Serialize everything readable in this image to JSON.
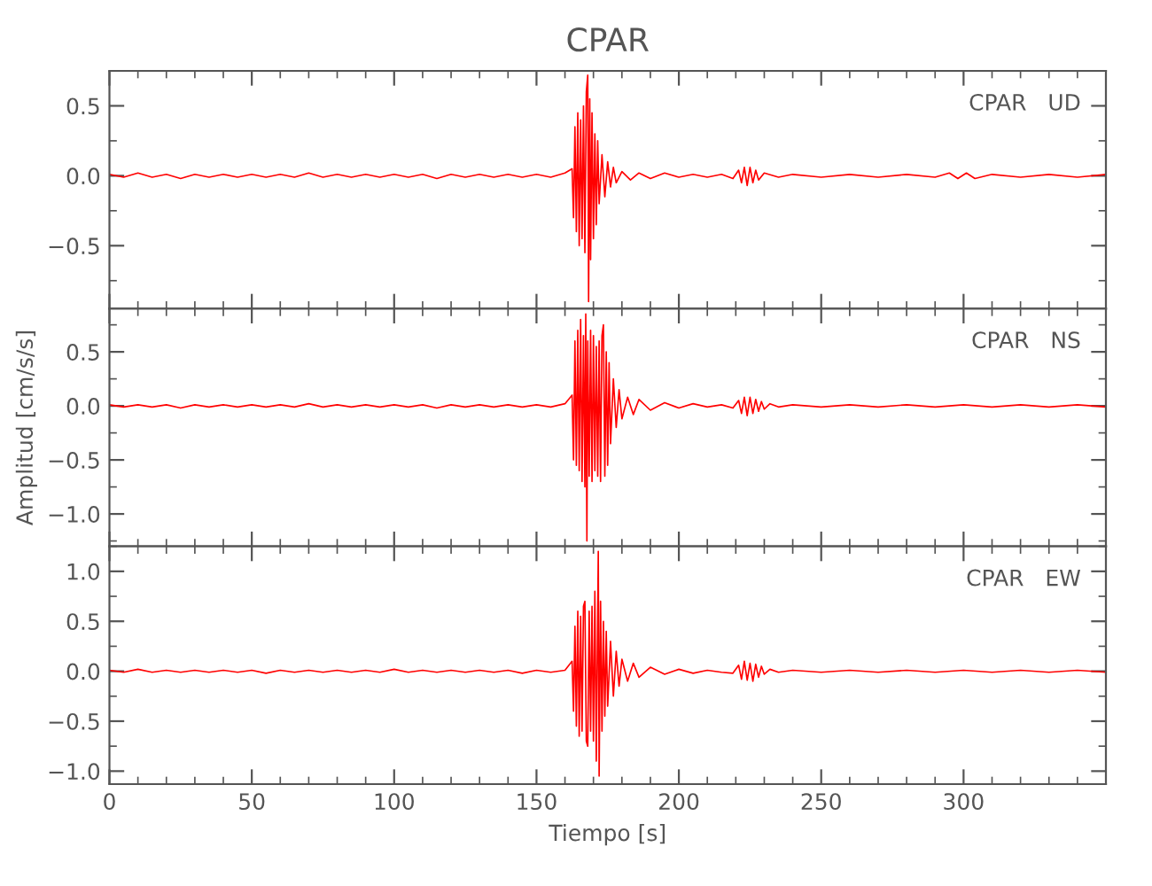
{
  "chart_data": [
    {
      "type": "line",
      "title": "CPAR",
      "annotations": [
        "CPAR   UD"
      ],
      "x": [
        0,
        5,
        10,
        15,
        20,
        25,
        30,
        35,
        40,
        45,
        50,
        55,
        60,
        65,
        70,
        75,
        80,
        85,
        90,
        95,
        100,
        105,
        110,
        115,
        120,
        125,
        130,
        135,
        140,
        145,
        150,
        155,
        160,
        162.5,
        163,
        163.5,
        164,
        164.5,
        165,
        165.5,
        166,
        166.5,
        167,
        167.5,
        168,
        168.3,
        168.7,
        169,
        169.5,
        170,
        170.5,
        171,
        171.5,
        172,
        173,
        174,
        175,
        176,
        177,
        178,
        180,
        183,
        186,
        190,
        195,
        200,
        205,
        210,
        215,
        219,
        221,
        222,
        223,
        224,
        225,
        226,
        227,
        228,
        230,
        235,
        240,
        250,
        260,
        270,
        280,
        290,
        295,
        298,
        301,
        304,
        310,
        320,
        330,
        340,
        350
      ],
      "series": [
        {
          "color": "#ff0000",
          "values": [
            0.01,
            -0.01,
            0.02,
            -0.01,
            0.01,
            -0.02,
            0.01,
            -0.01,
            0.01,
            -0.01,
            0.01,
            -0.01,
            0.01,
            -0.01,
            0.02,
            -0.01,
            0.01,
            -0.01,
            0.01,
            -0.01,
            0.01,
            -0.01,
            0.01,
            -0.02,
            0.01,
            -0.01,
            0.01,
            -0.01,
            0.01,
            -0.01,
            0.01,
            -0.01,
            0.02,
            0.05,
            -0.3,
            0.35,
            -0.4,
            0.45,
            -0.5,
            0.4,
            -0.45,
            0.5,
            -0.55,
            0.6,
            0.72,
            -0.9,
            0.55,
            -0.6,
            0.45,
            -0.45,
            0.3,
            -0.35,
            0.25,
            -0.2,
            0.15,
            -0.15,
            0.1,
            -0.08,
            0.06,
            -0.05,
            0.03,
            -0.03,
            0.02,
            -0.02,
            0.02,
            -0.01,
            0.01,
            -0.01,
            0.01,
            -0.02,
            0.04,
            -0.05,
            0.06,
            -0.07,
            0.06,
            -0.05,
            0.04,
            -0.03,
            0.02,
            -0.01,
            0.01,
            -0.01,
            0.01,
            -0.01,
            0.01,
            -0.01,
            0.02,
            -0.02,
            0.02,
            -0.02,
            0.01,
            -0.01,
            0.01,
            -0.01,
            0.01
          ]
        }
      ],
      "xlim": [
        0,
        350
      ],
      "xticks": [
        0,
        50,
        100,
        150,
        200,
        250,
        300
      ],
      "ylim": [
        -0.95,
        0.75
      ],
      "yticks": [
        {
          "value": -0.5,
          "label": "−0.5"
        },
        {
          "value": 0,
          "label": "0.0"
        },
        {
          "value": 0.5,
          "label": "0.5"
        }
      ],
      "tick_labels": "y"
    },
    {
      "type": "line",
      "ylabel": "Amplitud [cm/s/s]",
      "annotations": [
        "CPAR   NS"
      ],
      "x": [
        0,
        5,
        10,
        15,
        20,
        25,
        30,
        35,
        40,
        45,
        50,
        55,
        60,
        65,
        70,
        75,
        80,
        85,
        90,
        95,
        100,
        105,
        110,
        115,
        120,
        125,
        130,
        135,
        140,
        145,
        150,
        155,
        160,
        162.5,
        163,
        163.5,
        164,
        164.5,
        165,
        165.5,
        166,
        166.5,
        167,
        167.3,
        167.7,
        168,
        168.5,
        169,
        169.5,
        170,
        170.5,
        171,
        171.5,
        172,
        172.5,
        173,
        173.5,
        174,
        174.5,
        175,
        175.5,
        176,
        177,
        178,
        179,
        180,
        182,
        184,
        186,
        190,
        195,
        200,
        205,
        210,
        215,
        219,
        221,
        222,
        223,
        224,
        225,
        226,
        227,
        228,
        229,
        230,
        232,
        235,
        240,
        250,
        260,
        270,
        280,
        290,
        300,
        310,
        320,
        330,
        340,
        350
      ],
      "series": [
        {
          "color": "#ff0000",
          "values": [
            0.01,
            -0.01,
            0.01,
            -0.01,
            0.01,
            -0.02,
            0.01,
            -0.01,
            0.01,
            -0.01,
            0.01,
            -0.01,
            0.01,
            -0.01,
            0.02,
            -0.01,
            0.01,
            -0.01,
            0.01,
            -0.01,
            0.01,
            -0.01,
            0.01,
            -0.02,
            0.01,
            -0.01,
            0.01,
            -0.01,
            0.01,
            -0.01,
            0.01,
            -0.01,
            0.02,
            0.1,
            -0.5,
            0.6,
            -0.55,
            0.7,
            -0.6,
            0.8,
            -0.7,
            0.65,
            -0.75,
            0.85,
            -1.25,
            0.6,
            -0.65,
            0.7,
            -0.7,
            0.65,
            -0.6,
            0.55,
            -0.65,
            0.6,
            -0.7,
            0.65,
            0.75,
            -0.65,
            0.5,
            -0.55,
            0.4,
            -0.35,
            0.25,
            -0.2,
            0.15,
            -0.12,
            0.08,
            -0.08,
            0.06,
            -0.04,
            0.03,
            -0.02,
            0.02,
            -0.01,
            0.01,
            -0.02,
            0.05,
            -0.07,
            0.08,
            -0.09,
            0.08,
            -0.07,
            0.06,
            -0.05,
            0.04,
            -0.03,
            0.02,
            -0.01,
            0.01,
            -0.01,
            0.01,
            -0.01,
            0.01,
            -0.01,
            0.01,
            -0.01,
            0.01,
            -0.01,
            0.01,
            -0.01
          ]
        }
      ],
      "xlim": [
        0,
        350
      ],
      "xticks": [
        0,
        50,
        100,
        150,
        200,
        250,
        300
      ],
      "ylim": [
        -1.3,
        0.9
      ],
      "yticks": [
        {
          "value": -1.0,
          "label": "−1.0"
        },
        {
          "value": -0.5,
          "label": "−0.5"
        },
        {
          "value": 0,
          "label": "0.0"
        },
        {
          "value": 0.5,
          "label": "0.5"
        }
      ],
      "tick_labels": "y"
    },
    {
      "type": "line",
      "xlabel": "Tiempo [s]",
      "annotations": [
        "CPAR   EW"
      ],
      "x": [
        0,
        5,
        10,
        15,
        20,
        25,
        30,
        35,
        40,
        45,
        50,
        55,
        60,
        65,
        70,
        75,
        80,
        85,
        90,
        95,
        100,
        105,
        110,
        115,
        120,
        125,
        130,
        135,
        140,
        145,
        150,
        155,
        160,
        162.5,
        163,
        163.5,
        164,
        164.5,
        165,
        165.5,
        166,
        166.5,
        167,
        167.5,
        168,
        168.5,
        169,
        169.5,
        170,
        170.5,
        171,
        171.7,
        172,
        172.5,
        173,
        173.5,
        174,
        174.5,
        175,
        176,
        177,
        178,
        179,
        180,
        182,
        184,
        186,
        190,
        195,
        200,
        205,
        210,
        215,
        219,
        221,
        222,
        223,
        224,
        225,
        226,
        227,
        228,
        229,
        230,
        232,
        235,
        240,
        250,
        260,
        270,
        280,
        290,
        300,
        310,
        320,
        330,
        340,
        350
      ],
      "series": [
        {
          "color": "#ff0000",
          "values": [
            0.01,
            -0.01,
            0.02,
            -0.01,
            0.01,
            -0.01,
            0.01,
            -0.01,
            0.01,
            -0.01,
            0.01,
            -0.02,
            0.01,
            -0.01,
            0.01,
            -0.01,
            0.01,
            -0.01,
            0.01,
            -0.01,
            0.02,
            -0.01,
            0.01,
            -0.01,
            0.01,
            -0.01,
            0.01,
            -0.01,
            0.01,
            -0.02,
            0.01,
            -0.01,
            0.01,
            0.1,
            -0.4,
            0.45,
            -0.55,
            0.6,
            -0.65,
            0.55,
            -0.6,
            0.65,
            0.7,
            -0.7,
            -0.75,
            0.6,
            -0.6,
            0.65,
            -0.7,
            0.8,
            -0.9,
            1.2,
            -1.05,
            0.7,
            -0.6,
            0.5,
            -0.45,
            0.4,
            -0.35,
            0.3,
            -0.25,
            0.2,
            -0.15,
            0.12,
            -0.1,
            0.08,
            -0.06,
            0.04,
            -0.03,
            0.02,
            -0.02,
            0.01,
            -0.01,
            -0.02,
            0.06,
            -0.08,
            0.1,
            -0.09,
            0.08,
            -0.1,
            0.07,
            -0.06,
            0.05,
            -0.03,
            0.02,
            -0.01,
            0.01,
            -0.01,
            0.01,
            -0.01,
            0.01,
            -0.01,
            0.01,
            -0.01,
            0.01,
            -0.01,
            0.01,
            -0.01
          ]
        }
      ],
      "xlim": [
        0,
        350
      ],
      "xticks": [
        0,
        50,
        100,
        150,
        200,
        250,
        300
      ],
      "ylim": [
        -1.13,
        1.25
      ],
      "yticks": [
        {
          "value": -1.0,
          "label": "−1.0"
        },
        {
          "value": -0.5,
          "label": "−0.5"
        },
        {
          "value": 0,
          "label": "0.0"
        },
        {
          "value": 0.5,
          "label": "0.5"
        },
        {
          "value": 1.0,
          "label": "1.0"
        }
      ]
    }
  ]
}
